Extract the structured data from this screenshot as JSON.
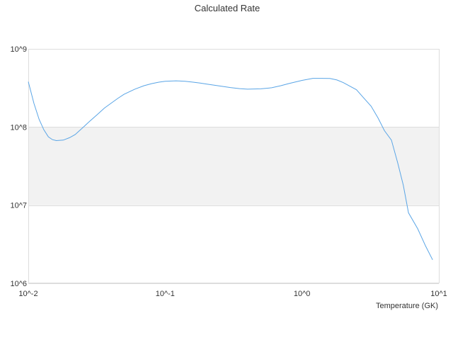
{
  "chart_data": {
    "type": "line",
    "title": "Calculated Rate",
    "xlabel": "Temperature (GK)",
    "ylabel": "",
    "x_scale": "log",
    "y_scale": "log",
    "xlim": [
      0.01,
      10
    ],
    "ylim": [
      1000000,
      1000000000
    ],
    "x_ticks": [
      {
        "value": 0.01,
        "label": "10^-2"
      },
      {
        "value": 0.1,
        "label": "10^-1"
      },
      {
        "value": 1,
        "label": "10^0"
      },
      {
        "value": 10,
        "label": "10^1"
      }
    ],
    "y_ticks": [
      {
        "value": 1000000,
        "label": "10^6"
      },
      {
        "value": 10000000,
        "label": "10^7"
      },
      {
        "value": 100000000,
        "label": "10^8"
      },
      {
        "value": 1000000000,
        "label": "10^9"
      }
    ],
    "bands": [
      {
        "from": 10000000,
        "to": 100000000,
        "color": "#f2f2f2"
      }
    ],
    "grid": true,
    "legend": "none",
    "series": [
      {
        "color": "#5aa5e6",
        "x": [
          0.01,
          0.011,
          0.012,
          0.013,
          0.014,
          0.015,
          0.016,
          0.018,
          0.02,
          0.022,
          0.025,
          0.028,
          0.032,
          0.036,
          0.04,
          0.045,
          0.05,
          0.06,
          0.07,
          0.08,
          0.09,
          0.1,
          0.12,
          0.14,
          0.16,
          0.18,
          0.2,
          0.25,
          0.3,
          0.35,
          0.4,
          0.5,
          0.6,
          0.7,
          0.8,
          1.0,
          1.2,
          1.4,
          1.6,
          1.8,
          2.0,
          2.5,
          2.8,
          3.2,
          3.6,
          4.0,
          4.5,
          5.0,
          5.5,
          6.0,
          7.0,
          8.0,
          9.0
        ],
        "values": [
          380000000,
          200000000,
          125000000,
          92000000,
          75000000,
          69000000,
          67000000,
          68000000,
          73000000,
          80000000,
          98000000,
          118000000,
          145000000,
          175000000,
          200000000,
          232000000,
          262000000,
          305000000,
          338000000,
          360000000,
          375000000,
          385000000,
          390000000,
          385000000,
          375000000,
          365000000,
          355000000,
          335000000,
          320000000,
          310000000,
          305000000,
          308000000,
          318000000,
          338000000,
          360000000,
          395000000,
          420000000,
          420000000,
          418000000,
          400000000,
          370000000,
          300000000,
          240000000,
          185000000,
          130000000,
          90000000,
          68000000,
          35000000,
          18000000,
          8000000,
          5000000,
          3000000,
          2000000
        ]
      }
    ]
  }
}
